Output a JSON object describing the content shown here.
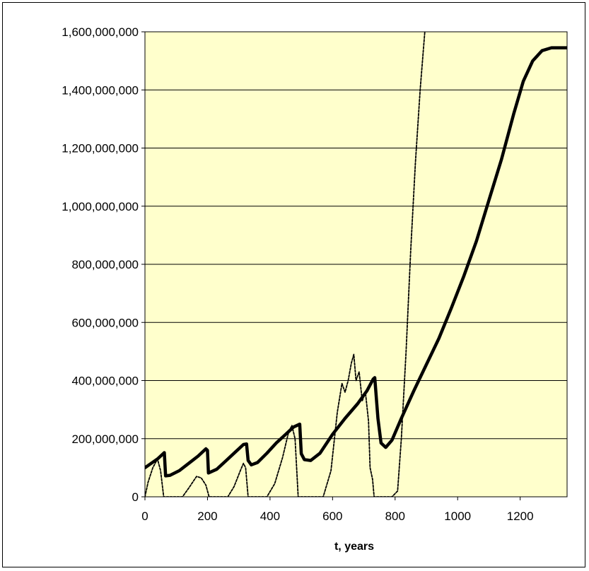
{
  "chart_data": {
    "type": "line",
    "title": "",
    "xlabel": "t, years",
    "ylabel": "",
    "xlim": [
      0,
      1350
    ],
    "ylim": [
      0,
      1600000000
    ],
    "x_ticks": [
      0,
      200,
      400,
      600,
      800,
      1000,
      1200
    ],
    "x_tick_labels": [
      "0",
      "200",
      "400",
      "600",
      "800",
      "1000",
      "1200"
    ],
    "y_ticks": [
      0,
      200000000,
      400000000,
      600000000,
      800000000,
      1000000000,
      1200000000,
      1400000000,
      1600000000
    ],
    "y_tick_labels": [
      "0",
      "200,000,000",
      "400,000,000",
      "600,000,000",
      "800,000,000",
      "1,000,000,000",
      "1,200,000,000",
      "1,400,000,000",
      "1,600,000,000"
    ],
    "grid": "horizontal",
    "plot_background": "#ffffcc",
    "legend": "none",
    "series": [
      {
        "style": "solid-thick",
        "color": "#000000",
        "points": [
          [
            0,
            100000000
          ],
          [
            20,
            115000000
          ],
          [
            40,
            130000000
          ],
          [
            55,
            145000000
          ],
          [
            62,
            152000000
          ],
          [
            66,
            72000000
          ],
          [
            80,
            74000000
          ],
          [
            110,
            90000000
          ],
          [
            140,
            115000000
          ],
          [
            170,
            140000000
          ],
          [
            195,
            165000000
          ],
          [
            200,
            160000000
          ],
          [
            203,
            82000000
          ],
          [
            230,
            95000000
          ],
          [
            260,
            125000000
          ],
          [
            290,
            155000000
          ],
          [
            315,
            180000000
          ],
          [
            325,
            182000000
          ],
          [
            330,
            125000000
          ],
          [
            340,
            110000000
          ],
          [
            360,
            118000000
          ],
          [
            390,
            150000000
          ],
          [
            420,
            185000000
          ],
          [
            450,
            215000000
          ],
          [
            475,
            240000000
          ],
          [
            495,
            250000000
          ],
          [
            500,
            148000000
          ],
          [
            510,
            128000000
          ],
          [
            530,
            125000000
          ],
          [
            560,
            150000000
          ],
          [
            600,
            215000000
          ],
          [
            640,
            270000000
          ],
          [
            680,
            320000000
          ],
          [
            710,
            365000000
          ],
          [
            730,
            405000000
          ],
          [
            735,
            410000000
          ],
          [
            745,
            270000000
          ],
          [
            755,
            185000000
          ],
          [
            770,
            170000000
          ],
          [
            790,
            195000000
          ],
          [
            820,
            270000000
          ],
          [
            860,
            365000000
          ],
          [
            900,
            455000000
          ],
          [
            940,
            545000000
          ],
          [
            980,
            650000000
          ],
          [
            1020,
            760000000
          ],
          [
            1060,
            880000000
          ],
          [
            1100,
            1020000000
          ],
          [
            1140,
            1160000000
          ],
          [
            1180,
            1320000000
          ],
          [
            1210,
            1430000000
          ],
          [
            1240,
            1500000000
          ],
          [
            1270,
            1535000000
          ],
          [
            1300,
            1545000000
          ],
          [
            1350,
            1545000000
          ]
        ]
      },
      {
        "style": "dashed-thin",
        "color": "#000000",
        "points": [
          [
            0,
            0
          ],
          [
            10,
            50000000
          ],
          [
            25,
            100000000
          ],
          [
            40,
            130000000
          ],
          [
            50,
            90000000
          ],
          [
            60,
            0
          ],
          [
            120,
            0
          ],
          [
            140,
            30000000
          ],
          [
            165,
            70000000
          ],
          [
            180,
            65000000
          ],
          [
            195,
            40000000
          ],
          [
            205,
            0
          ],
          [
            265,
            0
          ],
          [
            285,
            35000000
          ],
          [
            305,
            90000000
          ],
          [
            315,
            115000000
          ],
          [
            322,
            100000000
          ],
          [
            330,
            0
          ],
          [
            390,
            0
          ],
          [
            415,
            45000000
          ],
          [
            440,
            135000000
          ],
          [
            460,
            225000000
          ],
          [
            470,
            245000000
          ],
          [
            480,
            200000000
          ],
          [
            490,
            0
          ],
          [
            570,
            0
          ],
          [
            595,
            90000000
          ],
          [
            615,
            290000000
          ],
          [
            630,
            390000000
          ],
          [
            640,
            360000000
          ],
          [
            650,
            400000000
          ],
          [
            660,
            460000000
          ],
          [
            668,
            490000000
          ],
          [
            675,
            400000000
          ],
          [
            685,
            430000000
          ],
          [
            695,
            330000000
          ],
          [
            705,
            360000000
          ],
          [
            715,
            260000000
          ],
          [
            720,
            100000000
          ],
          [
            728,
            60000000
          ],
          [
            733,
            0
          ],
          [
            790,
            0
          ],
          [
            808,
            20000000
          ],
          [
            820,
            200000000
          ],
          [
            835,
            500000000
          ],
          [
            850,
            850000000
          ],
          [
            865,
            1150000000
          ],
          [
            880,
            1400000000
          ],
          [
            895,
            1600000000
          ]
        ]
      }
    ]
  }
}
